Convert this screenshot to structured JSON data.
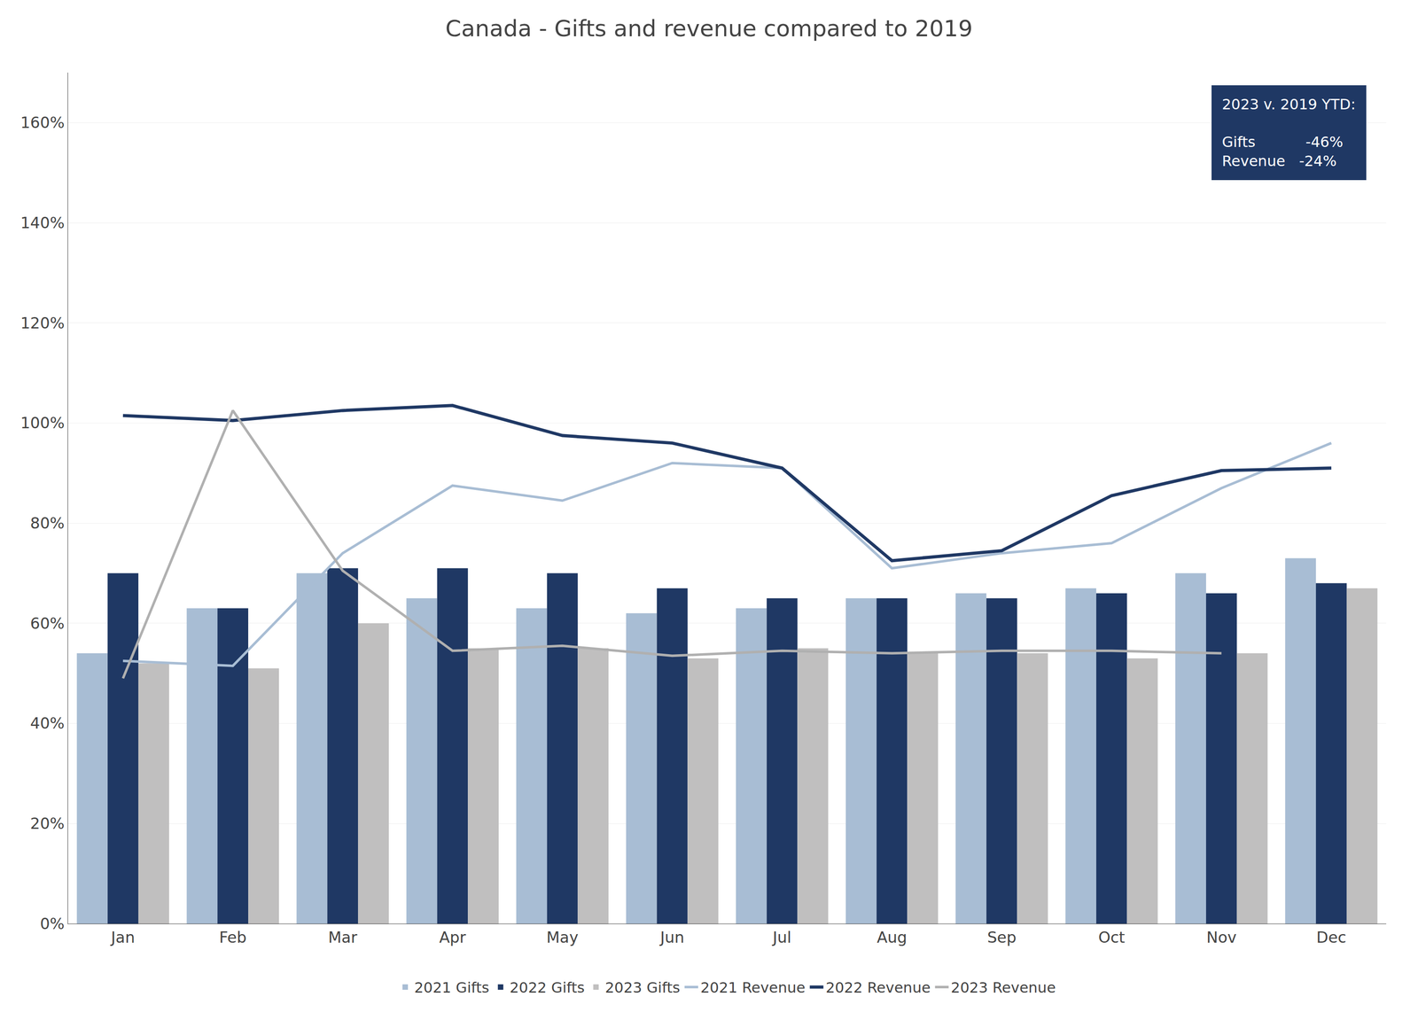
{
  "chart_data": {
    "type": "bar",
    "title": "Canada - Gifts and revenue compared to 2019",
    "categories": [
      "Jan",
      "Feb",
      "Mar",
      "Apr",
      "May",
      "Jun",
      "Jul",
      "Aug",
      "Sep",
      "Oct",
      "Nov",
      "Dec"
    ],
    "series": [
      {
        "name": "2021 Gifts",
        "type": "bar",
        "color": "#a8bdd4",
        "values": [
          0.54,
          0.63,
          0.7,
          0.65,
          0.63,
          0.62,
          0.63,
          0.65,
          0.66,
          0.67,
          0.7,
          0.73
        ]
      },
      {
        "name": "2022 Gifts",
        "type": "bar",
        "color": "#1f3864",
        "values": [
          0.7,
          0.63,
          0.71,
          0.71,
          0.7,
          0.67,
          0.65,
          0.65,
          0.65,
          0.66,
          0.66,
          0.68
        ]
      },
      {
        "name": "2023 Gifts",
        "type": "bar",
        "color": "#c0bfbf",
        "values": [
          0.52,
          0.51,
          0.6,
          0.55,
          0.55,
          0.53,
          0.55,
          0.54,
          0.54,
          0.53,
          0.54,
          0.67
        ]
      },
      {
        "name": "2021 Revenue",
        "type": "line",
        "color": "#a8bdd4",
        "values": [
          0.525,
          0.515,
          0.74,
          0.875,
          0.845,
          0.92,
          0.91,
          0.71,
          0.74,
          0.76,
          0.87,
          0.96
        ]
      },
      {
        "name": "2022 Revenue",
        "type": "line",
        "color": "#1f3864",
        "values": [
          1.015,
          1.005,
          1.025,
          1.035,
          0.975,
          0.96,
          0.91,
          0.725,
          0.745,
          0.855,
          0.905,
          0.91
        ]
      },
      {
        "name": "2023 Revenue",
        "type": "line",
        "color": "#b0b0b0",
        "values": [
          0.49,
          1.025,
          0.705,
          0.545,
          0.555,
          0.535,
          0.545,
          0.54,
          0.545,
          0.545,
          0.54,
          null
        ]
      }
    ],
    "ylim": [
      0,
      1.7
    ],
    "yticks": [
      {
        "value": 0.0,
        "label": "0%"
      },
      {
        "value": 0.2,
        "label": "20%"
      },
      {
        "value": 0.4,
        "label": "40%"
      },
      {
        "value": 0.6,
        "label": "60%"
      },
      {
        "value": 0.8,
        "label": "80%"
      },
      {
        "value": 1.0,
        "label": "100%"
      },
      {
        "value": 1.2,
        "label": "120%"
      },
      {
        "value": 1.4,
        "label": "140%"
      },
      {
        "value": 1.6,
        "label": "160%"
      }
    ],
    "grid": true,
    "legend": "bottom",
    "annotations": [
      {
        "text": "2023 v. 2019 YTD:\n\nGifts            -46%\nRevenue   -24%",
        "color": "#ffffff",
        "bgcolor": "#1f3864"
      }
    ]
  }
}
